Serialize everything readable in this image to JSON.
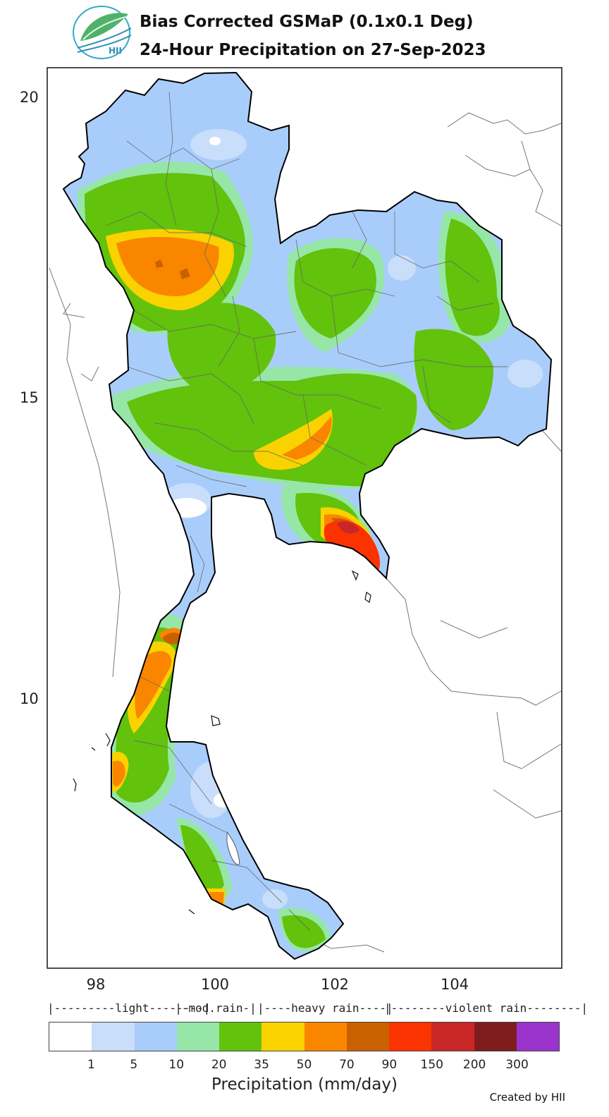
{
  "header": {
    "logo_text": "HII",
    "title_line1": "Bias Corrected GSMaP (0.1x0.1 Deg)",
    "title_line2": "24-Hour Precipitation on 27-Sep-2023"
  },
  "map": {
    "region": "Thailand",
    "lat_ticks": [
      "20",
      "15",
      "10"
    ],
    "lon_ticks": [
      "98",
      "100",
      "102",
      "104"
    ],
    "lat_range": [
      5.5,
      20.5
    ],
    "lon_range": [
      97.2,
      105.8
    ],
    "precip_zones": [
      {
        "name": "northwest",
        "class": "70-90"
      },
      {
        "name": "chanthaburi-trat",
        "class": "150-200"
      },
      {
        "name": "ranong-phang-nga",
        "class": "50-90"
      },
      {
        "name": "satun",
        "class": "50-70"
      }
    ]
  },
  "legend": {
    "categories": [
      {
        "label": "|---------light--------|"
      },
      {
        "label": "|-mod.rain-|"
      },
      {
        "label": "|----heavy rain----|"
      },
      {
        "label": "|--------violent rain--------|"
      }
    ],
    "colors": [
      "#ffffff",
      "#c9defa",
      "#a9cdfb",
      "#96e6a8",
      "#62c20c",
      "#fad200",
      "#fa8600",
      "#c96100",
      "#fa3300",
      "#c92727",
      "#7f1d1d",
      "#9933cc"
    ],
    "ticks": [
      "1",
      "5",
      "10",
      "20",
      "35",
      "50",
      "70",
      "90",
      "150",
      "200",
      "300"
    ],
    "units_label": "Precipitation (mm/day)"
  },
  "footer": {
    "credit": "Created by HII"
  }
}
